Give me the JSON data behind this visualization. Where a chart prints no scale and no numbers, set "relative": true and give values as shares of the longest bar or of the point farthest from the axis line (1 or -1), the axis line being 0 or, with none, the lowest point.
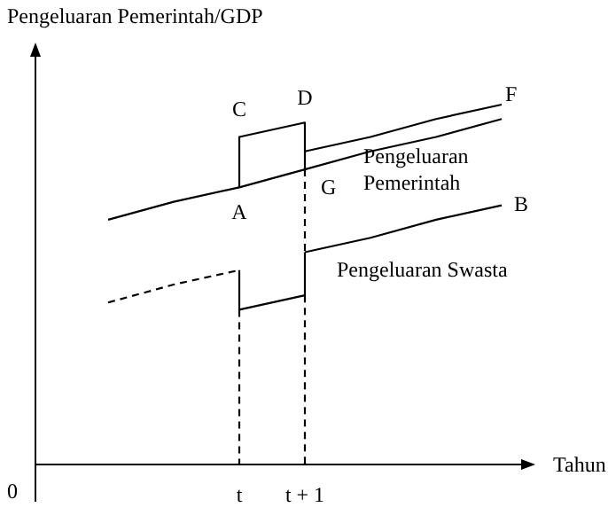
{
  "chart_data": {
    "type": "line",
    "xlabel": "Tahun",
    "ylabel": "Pengeluaran Pemerintah/GDP",
    "relative": true,
    "marker": "none",
    "categories": [
      null,
      null,
      "t",
      "t + 1",
      null,
      null,
      null
    ],
    "series": [
      {
        "name": "Pengeluaran Pemerintah",
        "color": "#000000",
        "line_style": "solid",
        "values": [
          0.68,
          0.73,
          0.77,
          0.82,
          0.87,
          0.91,
          0.96
        ]
      },
      {
        "color": "#000000",
        "line_style": "solid",
        "x": [
          "t",
          "t",
          "t + 1",
          "t + 1"
        ],
        "values": [
          0.77,
          0.91,
          0.95,
          0.82
        ]
      },
      {
        "color": "#000000",
        "line_style": "solid",
        "values": [
          null,
          null,
          null,
          0.87,
          0.91,
          0.96,
          1.0
        ]
      },
      {
        "color": "#000000",
        "line_style": "dashed",
        "values": [
          0.45,
          0.5,
          0.54,
          null,
          null,
          null,
          null
        ]
      },
      {
        "color": "#000000",
        "line_style": "solid",
        "x": [
          "t",
          "t",
          "t + 1",
          "t + 1"
        ],
        "values": [
          0.54,
          0.43,
          0.47,
          0.59
        ]
      },
      {
        "name": "Pengeluaran Swasta",
        "color": "#000000",
        "line_style": "solid",
        "values": [
          null,
          null,
          null,
          0.59,
          0.63,
          0.68,
          0.72
        ]
      },
      {
        "color": "#000000",
        "line_style": "dashed",
        "x": [
          "t",
          "t"
        ],
        "values": [
          0.43,
          0
        ]
      },
      {
        "color": "#000000",
        "line_style": "dashed",
        "x": [
          "t + 1",
          "t + 1"
        ],
        "values": [
          0.82,
          0.59
        ]
      },
      {
        "color": "#000000",
        "line_style": "dashed",
        "x": [
          "t + 1",
          "t + 1"
        ],
        "values": [
          0.47,
          0
        ]
      }
    ],
    "annotations": [
      {
        "text": "A",
        "x": "t",
        "y": 0.77
      },
      {
        "text": "C",
        "x": "t",
        "y": 0.91
      },
      {
        "text": "D",
        "x": "t + 1",
        "y": 0.95
      },
      {
        "text": "G",
        "x": "t + 1",
        "y": 0.82
      },
      "F",
      "B",
      "0"
    ]
  }
}
